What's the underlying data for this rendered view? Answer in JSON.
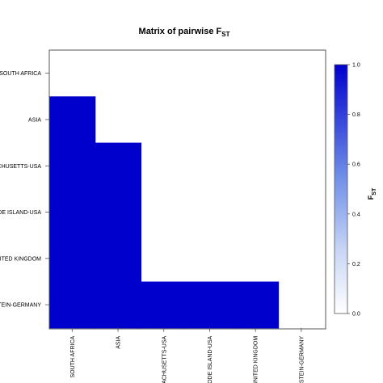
{
  "chart_data": {
    "type": "heatmap",
    "title": "Matrix of pairwise F",
    "title_subscript": "ST",
    "row_labels": [
      "SOUTH AFRICA",
      "ASIA",
      "MASSACHUSETTS-USA",
      "RHODE ISLAND-USA",
      "UNITED KINGDOM",
      "SCHLESWIG-HOLSTEIN-GERMANY"
    ],
    "row_labels_visible": [
      "SOUTH AFRICA",
      "ASIA",
      "ACHUSETTS-USA",
      "ODE ISLAND-USA",
      "NITED KINGDOM",
      "STEIN-GERMANY"
    ],
    "col_labels": [
      "SOUTH AFRICA",
      "ASIA",
      "ACHUSETTS-USA",
      "ODE ISLAND-USA",
      "UNITED KINGDOM",
      "STEIN-GERMANY"
    ],
    "matrix": [
      [
        0,
        0,
        0,
        0,
        0,
        0
      ],
      [
        1,
        0,
        0,
        0,
        0,
        0
      ],
      [
        1,
        1,
        0,
        0,
        0,
        0
      ],
      [
        1,
        1,
        0,
        0,
        0,
        0
      ],
      [
        1,
        1,
        0,
        0,
        0,
        0
      ],
      [
        1,
        1,
        1,
        1,
        1,
        0
      ]
    ],
    "colorbar": {
      "label": "F",
      "label_subscript": "ST",
      "range": [
        0,
        1
      ],
      "ticks": [
        "0.0",
        "0.2",
        "0.4",
        "0.6",
        "0.8",
        "1.0"
      ],
      "low_color": "#ffffff",
      "high_color": "#0000cd"
    }
  },
  "colors": {
    "cell_high": "#0000cd",
    "axis": "#555555"
  }
}
